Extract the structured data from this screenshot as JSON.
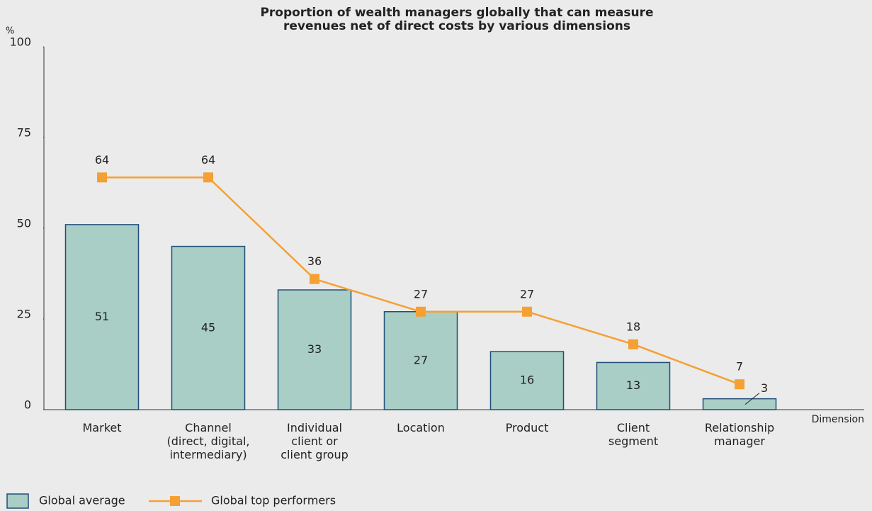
{
  "chart_data": {
    "type": "bar_line",
    "title": "Proportion of wealth managers globally that can measure\nrevenues net of direct costs by various dimensions",
    "y_unit": "%",
    "x_label": "Dimension",
    "categories": [
      "Market",
      "Channel\n(direct, digital,\nintermediary)",
      "Individual\nclient or\nclient group",
      "Location",
      "Product",
      "Client\nsegment",
      "Relationship\nmanager"
    ],
    "series": [
      {
        "name": "Global average",
        "type": "bar",
        "color": "#a9cec6",
        "edge": "#1f4e79",
        "values": [
          51,
          45,
          33,
          27,
          16,
          13,
          3
        ]
      },
      {
        "name": "Global top performers",
        "type": "line",
        "color": "#f5a033",
        "values": [
          64,
          64,
          36,
          27,
          27,
          18,
          7
        ]
      }
    ],
    "ylim": [
      0,
      100
    ],
    "yticks": [
      0,
      25,
      50,
      75,
      100
    ]
  }
}
